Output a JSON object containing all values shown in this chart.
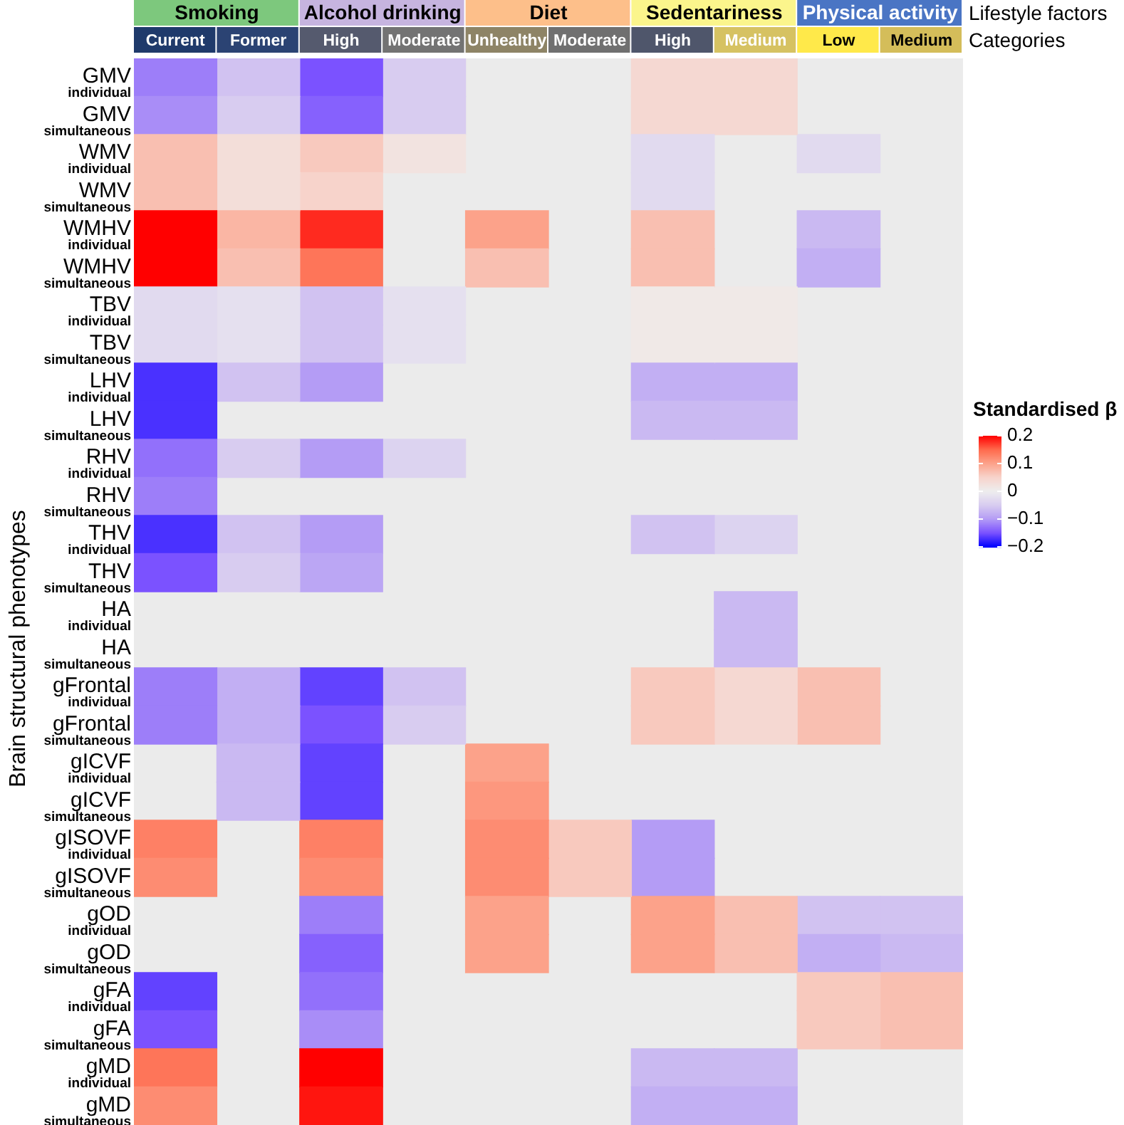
{
  "chart_data": {
    "type": "heatmap",
    "ylabel": "Brain structural phenotypes",
    "clabel": "Standardised β",
    "categories": [
      "Current",
      "Former",
      "High",
      "Moderate",
      "Unhealthy",
      "Moderate",
      "High",
      "Medium",
      "Low",
      "Medium"
    ],
    "y_categories": [
      "GMV$_{individual}$",
      "GMV$_{simultaneous}$",
      "WMV$_{individual}$",
      "WMV$_{simultaneous}$",
      "WMHV$_{individual}$",
      "WMHV$_{simultaneous}$",
      "TBV$_{individual}$",
      "TBV$_{simultaneous}$",
      "LHV$_{individual}$",
      "LHV$_{simultaneous}$",
      "RHV$_{individual}$",
      "RHV$_{simultaneous}$",
      "THV$_{individual}$",
      "THV$_{simultaneous}$",
      "HA$_{individual}$",
      "HA$_{simultaneous}$",
      "gFrontal$_{individual}$",
      "gFrontal$_{simultaneous}$",
      "gICVF$_{individual}$",
      "gICVF$_{simultaneous}$",
      "gISOVF$_{individual}$",
      "gISOVF$_{simultaneous}$",
      "gOD$_{individual}$",
      "gOD$_{simultaneous}$",
      "gFA$_{individual}$",
      "gFA$_{simultaneous}$",
      "gMD$_{individual}$",
      "gMD$_{simultaneous}$"
    ],
    "cells": [
      [
        -0.12,
        -0.06,
        -0.15,
        -0.05,
        null,
        null,
        0.04,
        0.04,
        null,
        null
      ],
      [
        -0.11,
        -0.05,
        -0.14,
        -0.05,
        null,
        null,
        0.04,
        0.04,
        null,
        null
      ],
      [
        0.07,
        0.03,
        0.06,
        0.02,
        null,
        null,
        -0.03,
        null,
        -0.03,
        null
      ],
      [
        0.07,
        0.03,
        0.05,
        null,
        null,
        null,
        -0.03,
        null,
        null,
        null
      ],
      [
        0.2,
        0.08,
        0.18,
        null,
        0.1,
        null,
        0.07,
        null,
        -0.07,
        null
      ],
      [
        0.2,
        0.07,
        0.14,
        null,
        0.07,
        null,
        0.07,
        null,
        -0.08,
        null
      ],
      [
        -0.03,
        -0.02,
        -0.06,
        -0.02,
        null,
        null,
        0.01,
        0.01,
        null,
        null
      ],
      [
        -0.03,
        -0.02,
        -0.06,
        -0.02,
        null,
        null,
        0.01,
        0.01,
        null,
        null
      ],
      [
        -0.17,
        -0.06,
        -0.1,
        null,
        null,
        null,
        -0.08,
        -0.08,
        null,
        null
      ],
      [
        -0.17,
        null,
        null,
        null,
        null,
        null,
        -0.07,
        -0.07,
        null,
        null
      ],
      [
        -0.13,
        -0.05,
        -0.1,
        -0.04,
        null,
        null,
        null,
        null,
        null,
        null
      ],
      [
        -0.12,
        null,
        null,
        null,
        null,
        null,
        null,
        null,
        null,
        null
      ],
      [
        -0.17,
        -0.06,
        -0.1,
        null,
        null,
        null,
        -0.06,
        -0.04,
        null,
        null
      ],
      [
        -0.15,
        -0.05,
        -0.09,
        null,
        null,
        null,
        null,
        null,
        null,
        null
      ],
      [
        null,
        null,
        null,
        null,
        null,
        null,
        null,
        -0.07,
        null,
        null
      ],
      [
        null,
        null,
        null,
        null,
        null,
        null,
        null,
        -0.07,
        null,
        null
      ],
      [
        -0.12,
        -0.08,
        -0.16,
        -0.06,
        null,
        null,
        0.06,
        0.04,
        0.07,
        null
      ],
      [
        -0.12,
        -0.08,
        -0.15,
        -0.05,
        null,
        null,
        0.06,
        0.04,
        0.07,
        null
      ],
      [
        null,
        -0.07,
        -0.16,
        null,
        0.1,
        null,
        null,
        null,
        null,
        null
      ],
      [
        null,
        -0.07,
        -0.16,
        null,
        0.11,
        null,
        null,
        null,
        null,
        null
      ],
      [
        0.13,
        null,
        0.13,
        null,
        0.12,
        0.06,
        -0.1,
        null,
        null,
        null
      ],
      [
        0.12,
        null,
        0.12,
        null,
        0.12,
        0.06,
        -0.1,
        null,
        null,
        null
      ],
      [
        null,
        null,
        -0.12,
        null,
        0.1,
        null,
        0.1,
        0.07,
        -0.06,
        -0.06
      ],
      [
        null,
        null,
        -0.14,
        null,
        0.1,
        null,
        0.1,
        0.07,
        -0.08,
        -0.07
      ],
      [
        -0.16,
        null,
        -0.13,
        null,
        null,
        null,
        null,
        null,
        0.06,
        0.07
      ],
      [
        -0.15,
        null,
        -0.11,
        null,
        null,
        null,
        null,
        null,
        0.06,
        0.07
      ],
      [
        0.14,
        null,
        0.2,
        null,
        null,
        null,
        -0.07,
        -0.07,
        null,
        null
      ],
      [
        0.12,
        null,
        0.19,
        null,
        null,
        null,
        -0.08,
        -0.08,
        null,
        null
      ]
    ],
    "clim": [
      -0.2,
      0.2
    ],
    "cticks": [
      {
        "value": 0.2,
        "label": "0.2"
      },
      {
        "value": 0.1,
        "label": "0.1"
      },
      {
        "value": 0,
        "label": "0"
      },
      {
        "value": -0.1,
        "label": "−0.1"
      },
      {
        "value": -0.2,
        "label": "−0.2"
      }
    ],
    "annotations": [
      "Lifestyle factors",
      "Categories",
      "Smoking",
      "Alcohol drinking",
      "Diet",
      "Sedentariness",
      "Physical activity"
    ]
  }
}
